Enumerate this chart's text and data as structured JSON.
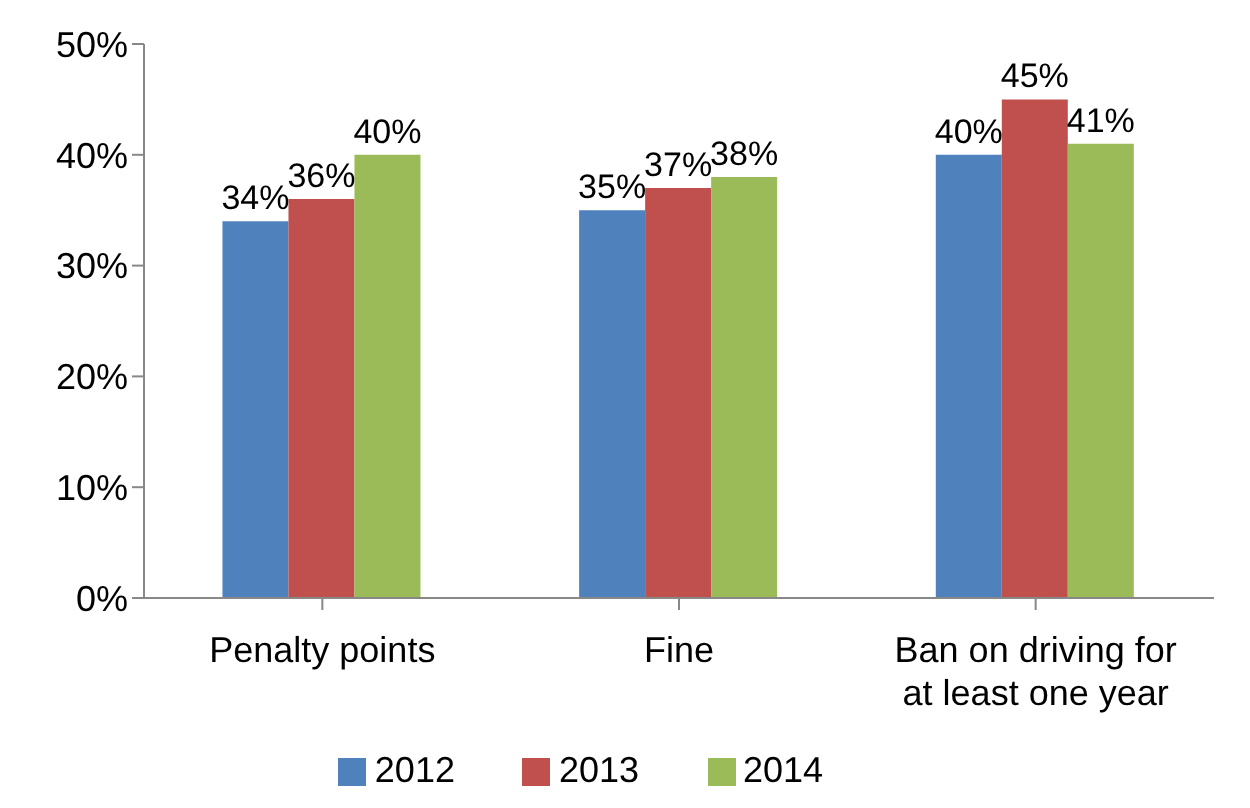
{
  "chart_data": {
    "type": "bar",
    "categories": [
      "Penalty points",
      "Fine",
      "Ban on driving for at least one year"
    ],
    "series": [
      {
        "name": "2012",
        "color": "#4f81bd",
        "values": [
          34,
          35,
          40
        ],
        "value_labels": [
          "34%",
          "35%",
          "40%"
        ]
      },
      {
        "name": "2013",
        "color": "#c0504d",
        "values": [
          36,
          37,
          45
        ],
        "value_labels": [
          "36%",
          "37%",
          "45%"
        ]
      },
      {
        "name": "2014",
        "color": "#9bbb59",
        "values": [
          40,
          38,
          41
        ],
        "value_labels": [
          "40%",
          "38%",
          "41%"
        ]
      }
    ],
    "ylim": [
      0,
      50
    ],
    "yticks": [
      {
        "value": 0,
        "label": "0%"
      },
      {
        "value": 10,
        "label": "10%"
      },
      {
        "value": 20,
        "label": "20%"
      },
      {
        "value": 30,
        "label": "30%"
      },
      {
        "value": 40,
        "label": "40%"
      },
      {
        "value": 50,
        "label": "50%"
      }
    ],
    "legend": "bottom"
  }
}
